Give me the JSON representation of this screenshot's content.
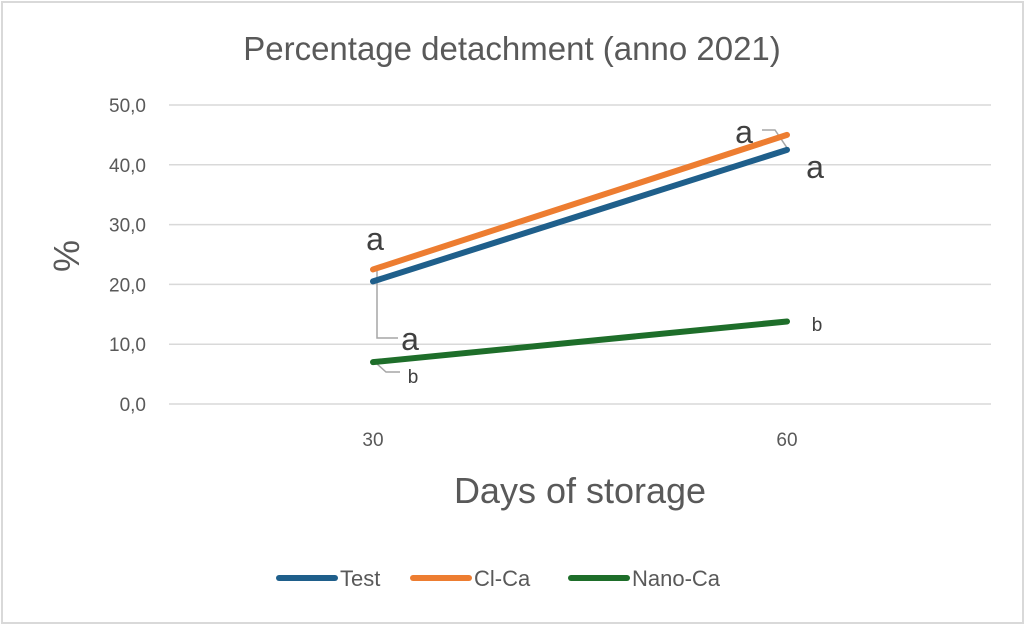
{
  "chart_data": {
    "type": "line",
    "title": "Percentage detachment (anno 2021)",
    "xlabel": "Days of storage",
    "ylabel": "%",
    "categories": [
      "30",
      "60"
    ],
    "ylim": [
      0,
      50
    ],
    "yticks": [
      0,
      10,
      20,
      30,
      40,
      50
    ],
    "ytick_labels": [
      "0,0",
      "10,0",
      "20,0",
      "30,0",
      "40,0",
      "50,0"
    ],
    "grid": true,
    "legend_position": "bottom",
    "series": [
      {
        "name": "Test",
        "color": "#1f5f8b",
        "values": [
          20.5,
          42.5
        ]
      },
      {
        "name": "Cl-Ca",
        "color": "#ed7d31",
        "values": [
          22.5,
          45.0
        ]
      },
      {
        "name": "Nano-Ca",
        "color": "#1e6e2a",
        "values": [
          7.0,
          13.8
        ]
      }
    ],
    "annotations": [
      {
        "text": "a",
        "series": "Cl-Ca",
        "category": "30",
        "size": "large"
      },
      {
        "text": "a",
        "series": "Test",
        "category": "30",
        "size": "large"
      },
      {
        "text": "b",
        "series": "Nano-Ca",
        "category": "30",
        "size": "small"
      },
      {
        "text": "a",
        "series": "Cl-Ca",
        "category": "60",
        "size": "large"
      },
      {
        "text": "a",
        "series": "Test",
        "category": "60",
        "size": "large"
      },
      {
        "text": "b",
        "series": "Nano-Ca",
        "category": "60",
        "size": "small"
      }
    ]
  }
}
